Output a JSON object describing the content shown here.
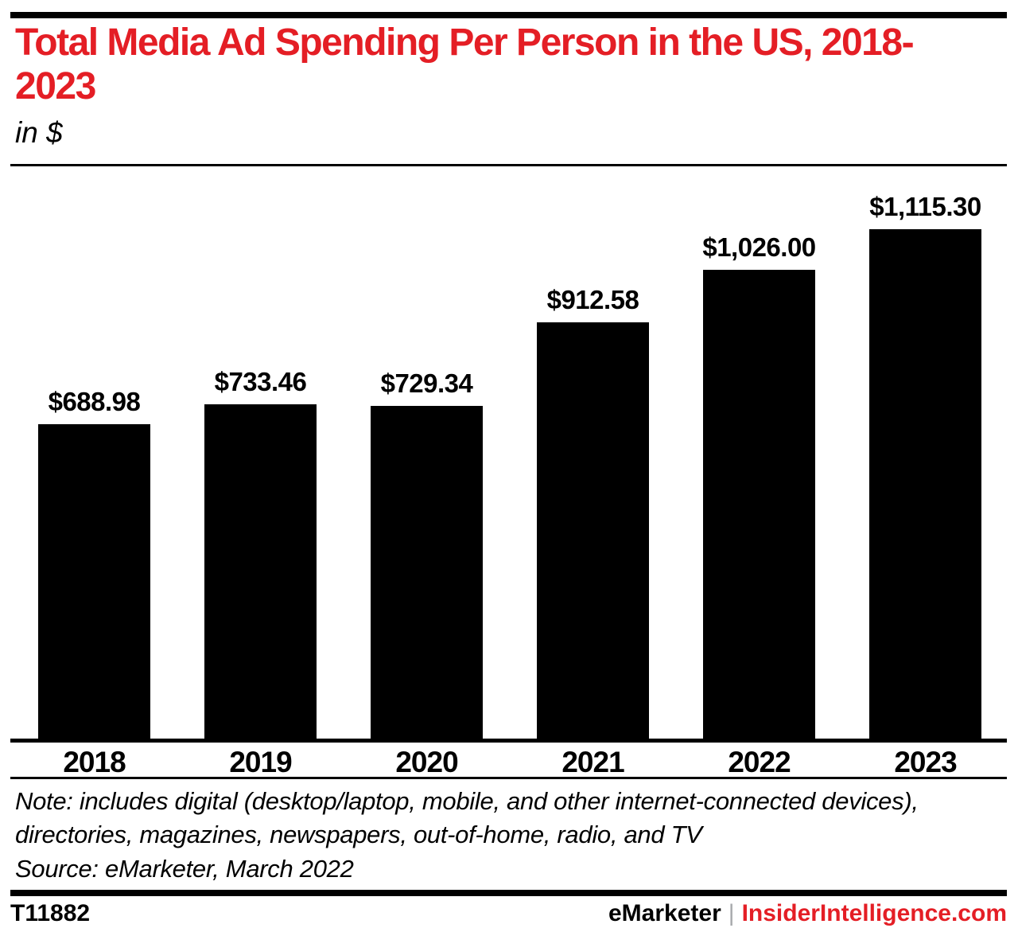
{
  "page": {
    "background": "#ffffff",
    "accent_red": "#e41e25",
    "bar_black": "#000000",
    "separator_gray": "#a7a9ac"
  },
  "header": {
    "title": "Total Media Ad Spending Per Person in the US, 2018-2023",
    "subtitle": "in $"
  },
  "chart_data": {
    "type": "bar",
    "title": "Total Media Ad Spending Per Person in the US, 2018-2023",
    "units": "in $",
    "categories": [
      "2018",
      "2019",
      "2020",
      "2021",
      "2022",
      "2023"
    ],
    "values": [
      688.98,
      733.46,
      729.34,
      912.58,
      1026.0,
      1115.3
    ],
    "value_labels": [
      "$688.98",
      "$733.46",
      "$729.34",
      "$912.58",
      "$1,026.00",
      "$1,115.30"
    ],
    "bar_color": "#000000",
    "xlabel": "",
    "ylabel": "",
    "ylim": [
      0,
      1115.3
    ],
    "grid": false,
    "legend": "none"
  },
  "notes": {
    "note": "Note: includes digital (desktop/laptop, mobile, and other internet-connected devices), directories, magazines, newspapers, out-of-home, radio, and TV",
    "source": "Source: eMarketer, March 2022"
  },
  "footer": {
    "chart_id": "T11882",
    "brand_left": "eMarketer",
    "separator": "|",
    "brand_right": "InsiderIntelligence.com"
  }
}
